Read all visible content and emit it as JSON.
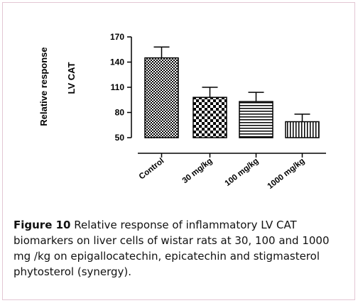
{
  "chart_data": {
    "type": "bar",
    "ylabel": "Relative response",
    "ylabel2": "LV CAT",
    "xlabel": "",
    "categories": [
      "Control",
      "30 mg/kg",
      "100 mg/kg",
      "1000 mg/kg"
    ],
    "values": [
      145,
      98,
      93,
      69
    ],
    "errors": [
      13,
      12,
      11,
      9
    ],
    "patterns": [
      "checker-fine",
      "checker-large",
      "horizontal-lines",
      "vertical-lines"
    ],
    "ylim": [
      50,
      170
    ],
    "yticks": [
      50,
      80,
      110,
      140,
      170
    ],
    "grid": false
  },
  "caption": {
    "label": "Figure 10",
    "text": " Relative response of inflammatory LV CAT biomarkers on liver cells of wistar rats at 30, 100 and 1000 mg /kg on epigallocatechin, epicatechin and stigmasterol phytosterol (synergy)."
  },
  "colors": {
    "border": "#e3c6d3",
    "bar_fill": "#000000",
    "text": "#111111"
  }
}
